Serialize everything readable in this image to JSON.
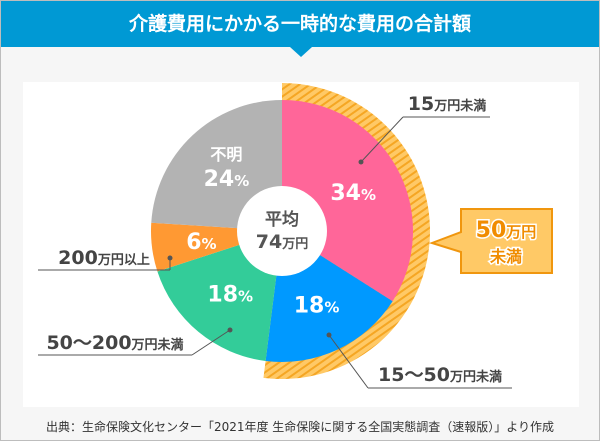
{
  "title": "介護費用にかかる一時的な費用の合計額",
  "source": "出典：生命保険文化センター「2021年度 生命保険に関する全国実態調査（速報版）」より作成",
  "chart_data": {
    "type": "pie",
    "center_label": {
      "line1": "平均",
      "line2_number": "74",
      "line2_unit": "万円"
    },
    "slices": [
      {
        "label_num": "15",
        "label_unit": "万円未満",
        "value": 34,
        "value_text": "34",
        "color": "#ff6699"
      },
      {
        "label_num": "15〜50",
        "label_unit": "万円未満",
        "value": 18,
        "value_text": "18",
        "color": "#0099ff"
      },
      {
        "label_num": "50〜200",
        "label_unit": "万円未満",
        "value": 18,
        "value_text": "18",
        "color": "#33cc99"
      },
      {
        "label_num": "200",
        "label_unit": "万円以上",
        "value": 6,
        "value_text": "6",
        "color": "#ff9933"
      },
      {
        "label_num": "",
        "label_unit": "不明",
        "value": 24,
        "value_text": "24",
        "color": "#b3b3b3"
      }
    ],
    "percent_sign": "%",
    "highlight": {
      "label_num": "50",
      "label_unit": "万円",
      "label_line2": "未満",
      "covers": [
        0,
        1
      ],
      "color": "#ffb833"
    }
  }
}
